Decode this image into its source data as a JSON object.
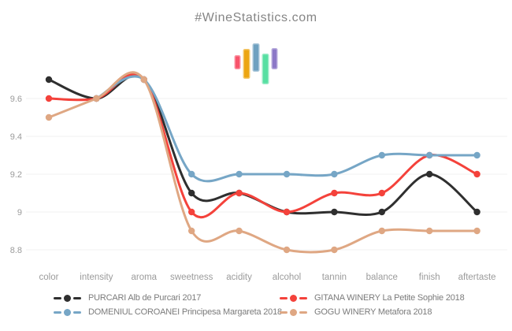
{
  "page": {
    "title": "#WineStatistics.com"
  },
  "logo": {
    "bar_colors": [
      "#f8536b",
      "#eca512",
      "#6fa1c0",
      "#57dfa2",
      "#8c78c7"
    ]
  },
  "chart_data": {
    "type": "line",
    "title": "#WineStatistics.com",
    "xlabel": "",
    "ylabel": "",
    "categories": [
      "color",
      "intensity",
      "aroma",
      "sweetness",
      "acidity",
      "alcohol",
      "tannin",
      "balance",
      "finish",
      "aftertaste"
    ],
    "series": [
      {
        "name": "PURCARI Alb de Purcari 2017",
        "color": "#2f2f2f",
        "values": [
          9.7,
          9.6,
          9.7,
          9.1,
          9.1,
          9.0,
          9.0,
          9.0,
          9.2,
          9.0
        ]
      },
      {
        "name": "GITANA WINERY La Petite Sophie 2018",
        "color": "#f4423b",
        "values": [
          9.6,
          9.6,
          9.7,
          9.0,
          9.1,
          9.0,
          9.1,
          9.1,
          9.3,
          9.2
        ]
      },
      {
        "name": "DOMENIUL COROANEI Principesa Margareta 2018",
        "color": "#76a6c6",
        "values": [
          null,
          9.6,
          9.7,
          9.2,
          9.2,
          9.2,
          9.2,
          9.3,
          9.3,
          9.3
        ]
      },
      {
        "name": "GOGU WINERY Metafora 2018",
        "color": "#dfa783",
        "values": [
          9.5,
          9.6,
          9.7,
          8.9,
          8.9,
          8.8,
          8.8,
          8.9,
          8.9,
          8.9
        ]
      }
    ],
    "yticks": [
      8.8,
      9.0,
      9.2,
      9.4,
      9.6
    ],
    "ytick_labels": [
      "8.8",
      "9",
      "9.2",
      "9.4",
      "9.6"
    ],
    "ylim": [
      8.75,
      9.75
    ],
    "grid": "horizontal-only",
    "legend_position": "bottom"
  },
  "colors": {
    "background": "#ffffff",
    "grid_line": "#f0f0f0",
    "axis_label": "#9b9b9b",
    "title_text": "#858585",
    "legend_text": "#7b7b7b"
  }
}
